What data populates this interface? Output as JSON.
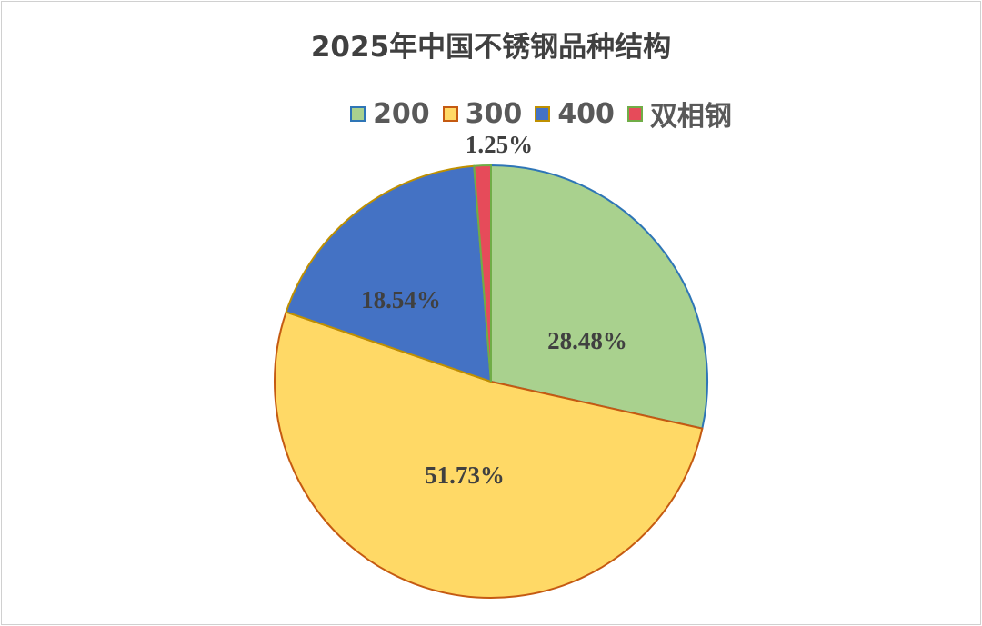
{
  "chart_data": {
    "type": "pie",
    "title": "2025年中国不锈钢品种结构",
    "categories": [
      "200",
      "300",
      "400",
      "双相钢"
    ],
    "values": [
      28.48,
      51.73,
      18.54,
      1.25
    ],
    "labels": [
      "28.48%",
      "51.73%",
      "18.54%",
      "1.25%"
    ],
    "colors": [
      "#A9D18E",
      "#FFD966",
      "#4472C4",
      "#E64B5A"
    ],
    "border_colors": [
      "#2E75B6",
      "#C55A11",
      "#BF9000",
      "#70AD47"
    ],
    "start_angle": "12 o'clock, clockwise",
    "legend_position": "top"
  }
}
